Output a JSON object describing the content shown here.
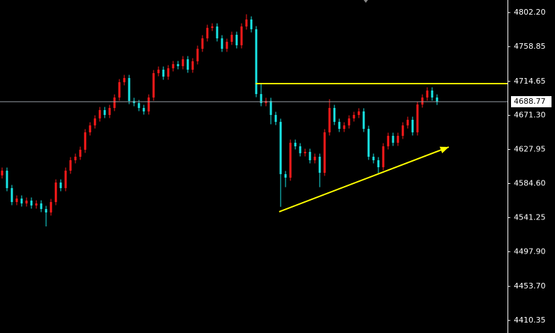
{
  "chart_data": {
    "type": "candlestick",
    "up_color": "#ff1a1a",
    "down_color": "#19e6e6",
    "ylim": [
      4394.4,
      4818.2
    ],
    "yticks": [
      {
        "value": 4802.2,
        "label": "4802.20"
      },
      4758.85,
      4714.65,
      {
        "value": 4671.3,
        "label": "4671.30"
      },
      4627.95,
      {
        "value": 4584.6,
        "label": "4584.60"
      },
      4541.25,
      {
        "value": 4497.9,
        "label": "4497.90"
      },
      {
        "value": 4453.7,
        "label": "4453.70"
      },
      4410.35
    ],
    "last_price": 4688.77,
    "open": [
      4595.0,
      4601.0,
      4578.8,
      4561.1,
      4565.5,
      4559.3,
      4562.9,
      4556.7,
      4559.3,
      4552.2,
      4547.8,
      4561.1,
      4585.9,
      4578.8,
      4601.0,
      4614.3,
      4618.7,
      4627.6,
      4649.8,
      4658.6,
      4667.5,
      4678.1,
      4671.9,
      4680.8,
      4694.1,
      4713.6,
      4718.9,
      4689.7,
      4687.0,
      4680.8,
      4676.4,
      4694.1,
      4725.1,
      4729.5,
      4720.7,
      4731.3,
      4736.6,
      4734.0,
      4742.8,
      4729.5,
      4740.2,
      4756.1,
      4769.4,
      4782.7,
      4784.5,
      4769.4,
      4756.1,
      4765.0,
      4773.9,
      4760.6,
      4784.5,
      4793.4,
      4781.0,
      4698.5,
      4687.0,
      4689.7,
      4671.9,
      4663.1,
      4596.6,
      4592.1,
      4636.5,
      4632.0,
      4623.2,
      4624.9,
      4614.3,
      4618.7,
      4598.3,
      4649.8,
      4680.8,
      4663.1,
      4654.2,
      4658.6,
      4667.5,
      4671.9,
      4676.4,
      4654.2,
      4618.7,
      4614.3,
      4605.4,
      4632.0,
      4645.3,
      4636.5,
      4645.3,
      4658.6,
      4665.7,
      4649.8,
      4685.2,
      4694.1,
      4703.0,
      4694.1
    ],
    "high": [
      4605.0,
      4605.0,
      4582.8,
      4569.5,
      4569.5,
      4566.9,
      4566.9,
      4563.3,
      4563.3,
      4556.2,
      4565.1,
      4589.9,
      4589.9,
      4605.0,
      4618.3,
      4622.7,
      4631.6,
      4653.8,
      4662.6,
      4671.5,
      4682.1,
      4682.1,
      4684.8,
      4698.1,
      4717.6,
      4722.9,
      4722.9,
      4693.7,
      4691.0,
      4684.8,
      4698.1,
      4729.1,
      4733.5,
      4733.5,
      4735.3,
      4740.6,
      4740.6,
      4746.8,
      4746.8,
      4744.2,
      4760.1,
      4773.4,
      4786.7,
      4788.5,
      4788.5,
      4773.4,
      4769.0,
      4777.9,
      4777.9,
      4788.5,
      4800.0,
      4797.4,
      4785.0,
      4712.0,
      4693.7,
      4693.7,
      4675.9,
      4667.1,
      4600.6,
      4640.5,
      4640.5,
      4636.0,
      4628.9,
      4628.9,
      4622.7,
      4622.7,
      4653.8,
      4692.0,
      4684.8,
      4667.1,
      4662.6,
      4671.5,
      4675.9,
      4680.4,
      4680.4,
      4658.2,
      4622.7,
      4618.3,
      4636.0,
      4649.3,
      4649.3,
      4649.3,
      4662.6,
      4669.7,
      4669.7,
      4689.2,
      4698.1,
      4707.0,
      4707.0,
      4698.1
    ],
    "low": [
      4591.0,
      4574.8,
      4557.1,
      4557.1,
      4555.3,
      4555.3,
      4552.7,
      4552.7,
      4548.2,
      4530.1,
      4543.8,
      4557.1,
      4574.8,
      4574.8,
      4597.0,
      4610.3,
      4614.7,
      4623.6,
      4645.8,
      4654.6,
      4663.5,
      4667.9,
      4667.9,
      4676.8,
      4690.1,
      4709.6,
      4685.7,
      4683.0,
      4676.8,
      4672.4,
      4672.4,
      4690.1,
      4721.1,
      4716.7,
      4716.7,
      4727.3,
      4730.0,
      4730.0,
      4725.5,
      4725.5,
      4736.2,
      4752.1,
      4765.4,
      4778.7,
      4765.4,
      4752.1,
      4752.1,
      4761.0,
      4756.6,
      4756.6,
      4780.5,
      4777.0,
      4694.5,
      4683.0,
      4683.0,
      4660.0,
      4659.1,
      4555.0,
      4580.0,
      4588.1,
      4628.0,
      4619.2,
      4619.2,
      4610.3,
      4610.3,
      4580.0,
      4594.3,
      4645.8,
      4659.1,
      4650.2,
      4650.2,
      4654.6,
      4663.5,
      4667.9,
      4650.2,
      4614.7,
      4610.3,
      4598.0,
      4601.4,
      4628.0,
      4632.5,
      4632.5,
      4641.3,
      4654.6,
      4645.8,
      4645.8,
      4681.2,
      4690.1,
      4690.1,
      4684.7
    ],
    "close": [
      4601.0,
      4578.8,
      4561.1,
      4565.5,
      4559.3,
      4562.9,
      4556.7,
      4559.3,
      4552.2,
      4547.8,
      4561.1,
      4585.9,
      4578.8,
      4601.0,
      4614.3,
      4618.7,
      4627.6,
      4649.8,
      4658.6,
      4667.5,
      4678.1,
      4671.9,
      4680.8,
      4694.1,
      4713.6,
      4718.9,
      4689.7,
      4687.0,
      4680.8,
      4676.4,
      4694.1,
      4725.1,
      4729.5,
      4720.7,
      4731.3,
      4736.6,
      4734.0,
      4742.8,
      4729.5,
      4740.2,
      4756.1,
      4769.4,
      4782.7,
      4784.5,
      4769.4,
      4756.1,
      4765.0,
      4773.9,
      4760.6,
      4784.5,
      4793.4,
      4781.0,
      4698.5,
      4687.0,
      4689.7,
      4671.9,
      4663.1,
      4596.6,
      4592.1,
      4636.5,
      4632.0,
      4623.2,
      4624.9,
      4614.3,
      4618.7,
      4598.3,
      4649.8,
      4680.8,
      4663.1,
      4654.2,
      4658.6,
      4667.5,
      4671.9,
      4676.4,
      4654.2,
      4618.7,
      4614.3,
      4605.4,
      4632.0,
      4645.3,
      4636.5,
      4645.3,
      4658.6,
      4665.7,
      4649.8,
      4685.2,
      4694.1,
      4703.0,
      4694.1,
      4688.7
    ],
    "hline": {
      "value": 4711.8,
      "from_x": 51.9,
      "color": "#ffff00"
    },
    "trendline": {
      "x": [
        56.7,
        91.4
      ],
      "y": [
        4548.7,
        4631.1
      ],
      "color": "#ffff00"
    }
  }
}
